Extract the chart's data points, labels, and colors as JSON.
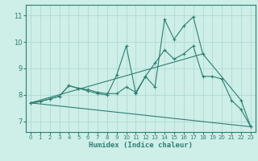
{
  "title": "",
  "xlabel": "Humidex (Indice chaleur)",
  "xlim": [
    -0.5,
    23.5
  ],
  "ylim": [
    6.6,
    11.4
  ],
  "yticks": [
    7,
    8,
    9,
    10,
    11
  ],
  "xticks": [
    0,
    1,
    2,
    3,
    4,
    5,
    6,
    7,
    8,
    9,
    10,
    11,
    12,
    13,
    14,
    15,
    16,
    17,
    18,
    19,
    20,
    21,
    22,
    23
  ],
  "bg_color": "#ceeee8",
  "line_color": "#2d7f72",
  "grid_color": "#aad6ce",
  "lines": [
    {
      "x": [
        0,
        1,
        2,
        3,
        4,
        5,
        6,
        7,
        8,
        9,
        10,
        11,
        12,
        13,
        14,
        15,
        16,
        17,
        18,
        22,
        23
      ],
      "y": [
        7.7,
        7.75,
        7.85,
        7.95,
        8.35,
        8.25,
        8.15,
        8.05,
        8.0,
        8.75,
        9.85,
        8.05,
        8.7,
        8.3,
        10.85,
        10.1,
        10.6,
        10.95,
        9.55,
        7.8,
        6.8
      ],
      "markers": true
    },
    {
      "x": [
        0,
        1,
        2,
        3,
        4,
        5,
        6,
        7,
        8,
        9,
        10,
        11,
        12,
        13,
        14,
        15,
        16,
        17,
        18,
        19,
        20,
        21,
        22,
        23
      ],
      "y": [
        7.7,
        7.75,
        7.85,
        7.95,
        8.35,
        8.25,
        8.2,
        8.1,
        8.05,
        8.05,
        8.3,
        8.1,
        8.7,
        9.2,
        9.7,
        9.35,
        9.55,
        9.85,
        8.7,
        8.7,
        8.6,
        7.8,
        7.45,
        6.8
      ],
      "markers": true
    },
    {
      "x": [
        0,
        18
      ],
      "y": [
        7.7,
        9.55
      ],
      "markers": false
    },
    {
      "x": [
        0,
        23
      ],
      "y": [
        7.7,
        6.8
      ],
      "markers": false
    }
  ]
}
